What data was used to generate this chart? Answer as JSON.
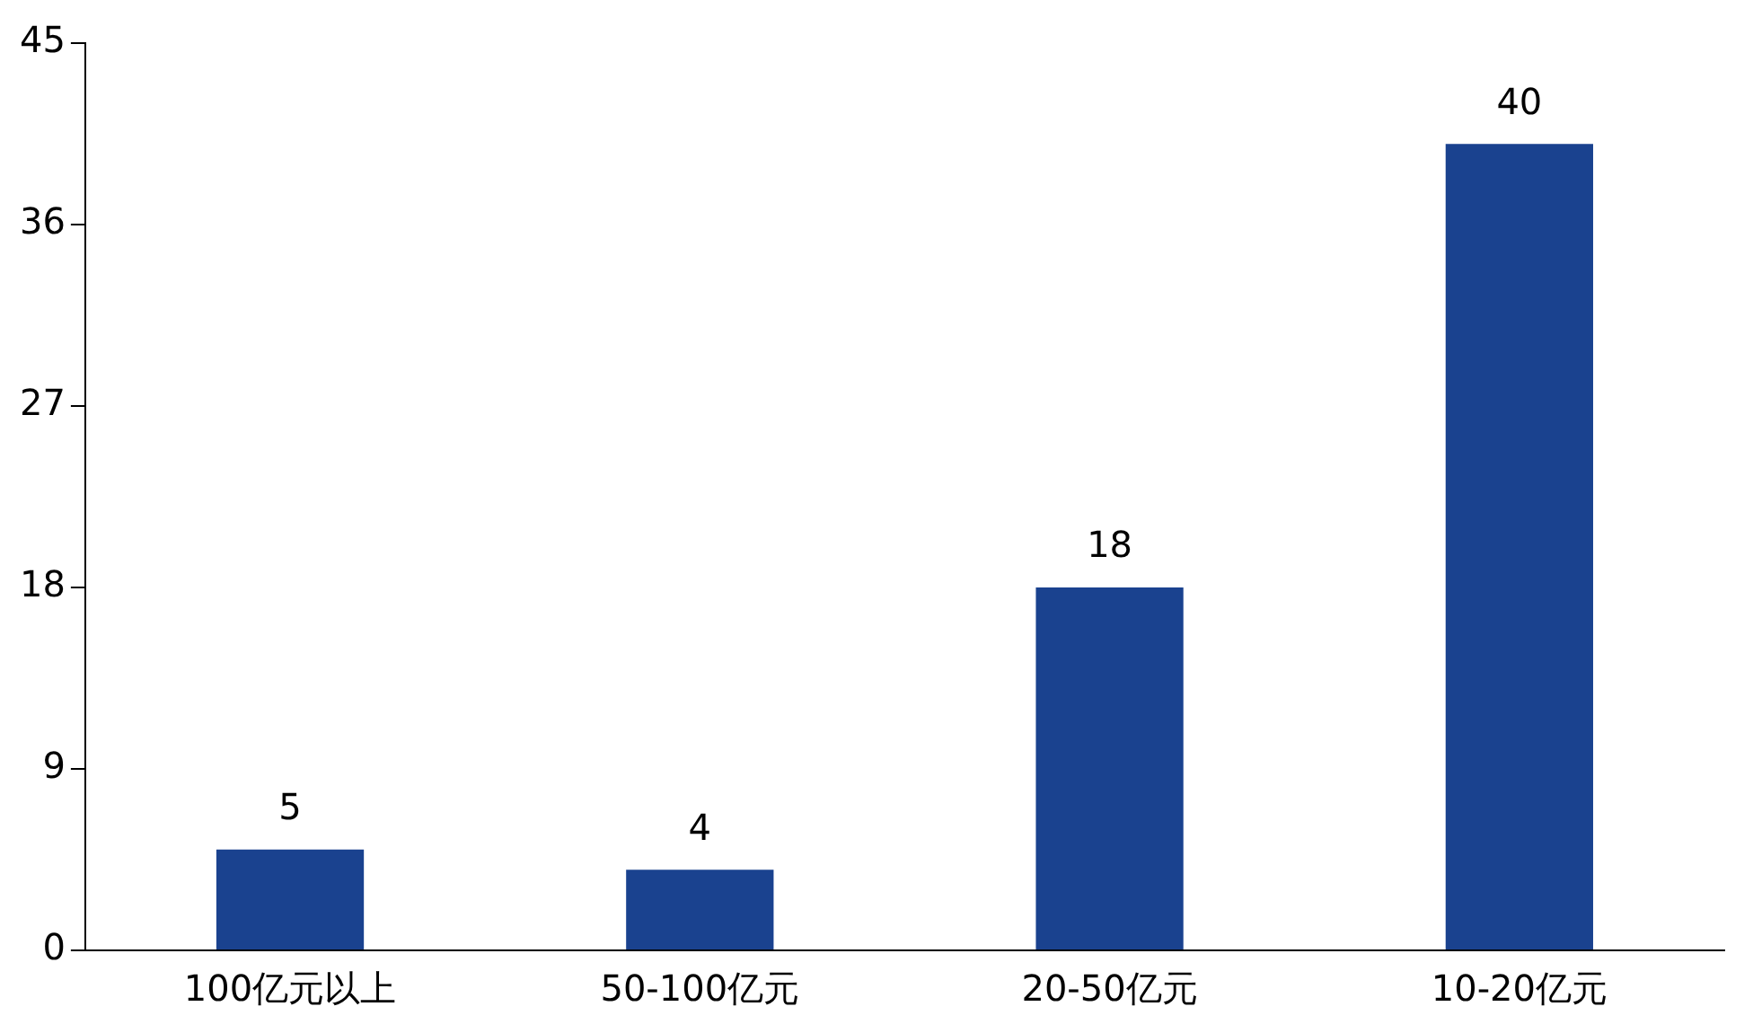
{
  "chart_data": {
    "type": "bar",
    "categories": [
      "100亿元以上",
      "50-100亿元",
      "20-50亿元",
      "10-20亿元"
    ],
    "values": [
      5,
      4,
      18,
      40
    ],
    "color": "#1a428f",
    "ylim": [
      0,
      45
    ],
    "yticks": [
      0,
      9,
      18,
      27,
      36,
      45
    ],
    "grid": false,
    "data_labels": true,
    "legend": false
  }
}
